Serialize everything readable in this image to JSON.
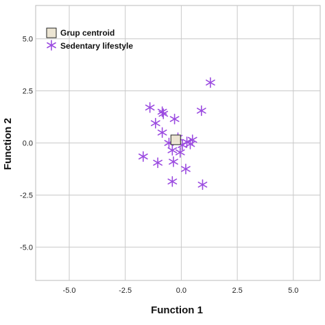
{
  "chart_data": {
    "type": "scatter",
    "xlabel": "Function 1",
    "ylabel": "Function 2",
    "xlim": [
      -6.5,
      6.2
    ],
    "ylim": [
      -6.6,
      6.6
    ],
    "x_ticks": [
      -5.0,
      -2.5,
      0.0,
      2.5,
      5.0
    ],
    "y_ticks": [
      5.0,
      2.5,
      0.0,
      -2.5,
      -5.0
    ],
    "x_tick_labels": [
      "-5.0",
      "-2.5",
      "0.0",
      "2.5",
      "5.0"
    ],
    "y_tick_labels": [
      "5.0",
      "2.5",
      "0.0",
      "-2.5",
      "-5.0"
    ],
    "grid": true,
    "legend": {
      "placement": "top-left",
      "entries": [
        {
          "label": "Grup centroid",
          "marker": "square",
          "color": "#ece5d3"
        },
        {
          "label": "Sedentary lifestyle",
          "marker": "star",
          "color": "#9b4be0"
        }
      ]
    },
    "series": [
      {
        "name": "Sedentary lifestyle",
        "marker": "star",
        "color": "#9b4be0",
        "points": [
          {
            "x": 1.3,
            "y": 2.9
          },
          {
            "x": -1.4,
            "y": 1.7
          },
          {
            "x": -0.85,
            "y": 1.5
          },
          {
            "x": -0.8,
            "y": 1.4
          },
          {
            "x": 0.9,
            "y": 1.55
          },
          {
            "x": -0.3,
            "y": 1.15
          },
          {
            "x": -1.15,
            "y": 0.95
          },
          {
            "x": -0.85,
            "y": 0.5
          },
          {
            "x": -0.15,
            "y": 0.25
          },
          {
            "x": -0.55,
            "y": 0.0
          },
          {
            "x": 0.05,
            "y": -0.1
          },
          {
            "x": 0.25,
            "y": 0.05
          },
          {
            "x": 0.4,
            "y": -0.05
          },
          {
            "x": 0.5,
            "y": 0.15
          },
          {
            "x": -0.4,
            "y": -0.35
          },
          {
            "x": -0.05,
            "y": -0.45
          },
          {
            "x": -1.7,
            "y": -0.65
          },
          {
            "x": -1.05,
            "y": -0.95
          },
          {
            "x": -0.35,
            "y": -0.9
          },
          {
            "x": 0.2,
            "y": -1.25
          },
          {
            "x": -0.4,
            "y": -1.85
          },
          {
            "x": 0.95,
            "y": -2.0
          }
        ]
      },
      {
        "name": "Grup centroid",
        "marker": "square",
        "color": "#ece5d3",
        "points": [
          {
            "x": -0.25,
            "y": 0.15
          }
        ]
      }
    ]
  }
}
